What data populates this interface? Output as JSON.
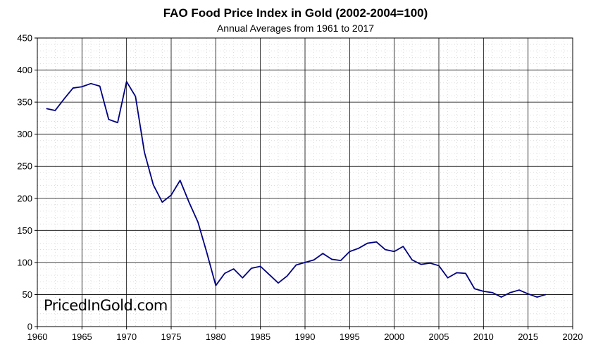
{
  "chart_data": {
    "type": "line",
    "title": "FAO Food Price Index in Gold (2002-2004=100)",
    "subtitle": "Annual Averages from 1961 to 2017",
    "xlabel": "",
    "ylabel": "",
    "xlim": [
      1960,
      2020
    ],
    "ylim": [
      0,
      450
    ],
    "x_ticks": [
      1960,
      1965,
      1970,
      1975,
      1980,
      1985,
      1990,
      1995,
      2000,
      2005,
      2010,
      2015,
      2020
    ],
    "y_ticks": [
      0,
      50,
      100,
      150,
      200,
      250,
      300,
      350,
      400,
      450
    ],
    "grid": true,
    "legend": "none",
    "line_color": "#000080",
    "watermark": "PricedInGold.com",
    "x": [
      1961,
      1962,
      1963,
      1964,
      1965,
      1966,
      1967,
      1968,
      1969,
      1970,
      1971,
      1972,
      1973,
      1974,
      1975,
      1976,
      1977,
      1978,
      1979,
      1980,
      1981,
      1982,
      1983,
      1984,
      1985,
      1986,
      1987,
      1988,
      1989,
      1990,
      1991,
      1992,
      1993,
      1994,
      1995,
      1996,
      1997,
      1998,
      1999,
      2000,
      2001,
      2002,
      2003,
      2004,
      2005,
      2006,
      2007,
      2008,
      2009,
      2010,
      2011,
      2012,
      2013,
      2014,
      2015,
      2016,
      2017
    ],
    "series": [
      {
        "values": [
          340,
          337,
          355,
          372,
          374,
          379,
          375,
          323,
          318,
          382,
          359,
          272,
          221,
          194,
          205,
          228,
          194,
          163,
          115,
          64,
          83,
          90,
          76,
          91,
          94,
          81,
          68,
          79,
          96,
          100,
          104,
          114,
          105,
          103,
          117,
          122,
          130,
          132,
          120,
          117,
          125,
          104,
          97,
          99,
          95,
          76,
          84,
          83,
          59,
          55,
          53,
          46,
          53,
          57,
          51,
          46,
          50
        ]
      }
    ]
  }
}
